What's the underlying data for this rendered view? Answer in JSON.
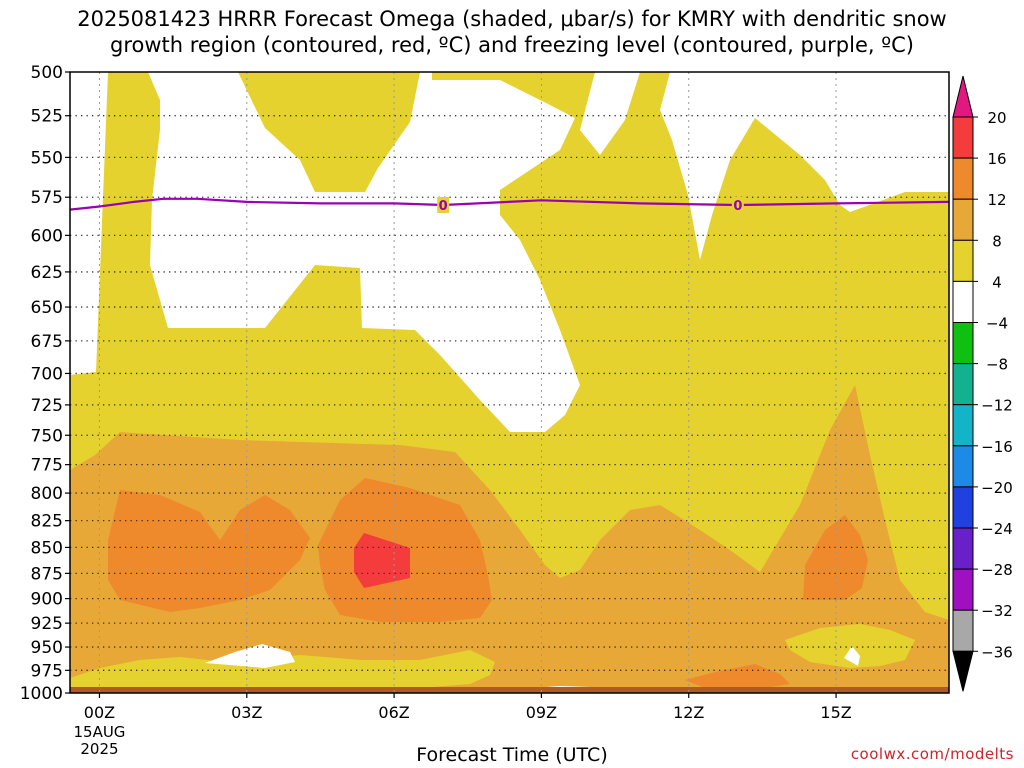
{
  "title_line1": "2025081423 HRRR Forecast Omega (shaded, μbar/s) for KMRY with dendritic snow",
  "title_line2": "growth region (contoured, red, ºC) and freezing level (contoured, purple, ºC)",
  "xlabel": "Forecast Time (UTC)",
  "watermark": "coolwx.com/modelts",
  "chart_data": {
    "type": "heatmap",
    "x_ticks": [
      "00Z",
      "03Z",
      "06Z",
      "09Z",
      "12Z",
      "15Z"
    ],
    "x_date_label": [
      "15AUG",
      "2025"
    ],
    "x_range_hours": [
      -0.6,
      17.3
    ],
    "y_ticks": [
      500,
      525,
      550,
      575,
      600,
      625,
      650,
      675,
      700,
      725,
      750,
      775,
      800,
      825,
      850,
      875,
      900,
      925,
      950,
      975,
      1000
    ],
    "y_range_mb": [
      500,
      1000
    ],
    "y_scale": "log-pressure",
    "colorbar": {
      "labels": [
        "20",
        "16",
        "12",
        "8",
        "4",
        "−4",
        "−8",
        "−12",
        "−16",
        "−20",
        "−24",
        "−28",
        "−32",
        "−36"
      ],
      "bins": [
        {
          "range": "> 20",
          "color": "#e01880"
        },
        {
          "range": "16 to 20",
          "color": "#f53c3c"
        },
        {
          "range": "12 to 16",
          "color": "#ee8a2c"
        },
        {
          "range": "8 to 12",
          "color": "#e8a838"
        },
        {
          "range": "4 to 8",
          "color": "#e6d22e"
        },
        {
          "range": "-4 to 4",
          "color": "#ffffff"
        },
        {
          "range": "-8 to -4",
          "color": "#10c010"
        },
        {
          "range": "-12 to -8",
          "color": "#12b290"
        },
        {
          "range": "-16 to -12",
          "color": "#14b4c8"
        },
        {
          "range": "-20 to -16",
          "color": "#1c8ae6"
        },
        {
          "range": "-24 to -20",
          "color": "#2040e0"
        },
        {
          "range": "-28 to -24",
          "color": "#6a20c8"
        },
        {
          "range": "-32 to -28",
          "color": "#a010c0"
        },
        {
          "range": "-36 to -32",
          "color": "#a8a8a8"
        },
        {
          "range": "< -36",
          "color": "#000000"
        }
      ]
    },
    "omega_regions": [
      {
        "level": "4 to 8",
        "desc": "yellow shading over most of the column"
      },
      {
        "level": "8 to 12",
        "desc": "lower layer roughly 750-1000 mb"
      },
      {
        "level": "12 to 16",
        "desc": "cores near 800-925 mb around 00Z, 05Z, 15Z and near 12-14Z at 990 mb"
      },
      {
        "level": "16 to 20",
        "desc": "small core near 850-885 mb around 05Z"
      }
    ],
    "freezing_level": {
      "label": "0",
      "color": "#9a00b4",
      "points_hour_mb": [
        [
          -0.6,
          583
        ],
        [
          0,
          581
        ],
        [
          0.7,
          578
        ],
        [
          1.3,
          576
        ],
        [
          2,
          576
        ],
        [
          3,
          578
        ],
        [
          4.5,
          579
        ],
        [
          6,
          579
        ],
        [
          7,
          580
        ],
        [
          9,
          577
        ],
        [
          11,
          579
        ],
        [
          13,
          580
        ],
        [
          15,
          579
        ],
        [
          17.3,
          578
        ]
      ],
      "labels_at_hours": [
        7,
        13
      ]
    }
  }
}
